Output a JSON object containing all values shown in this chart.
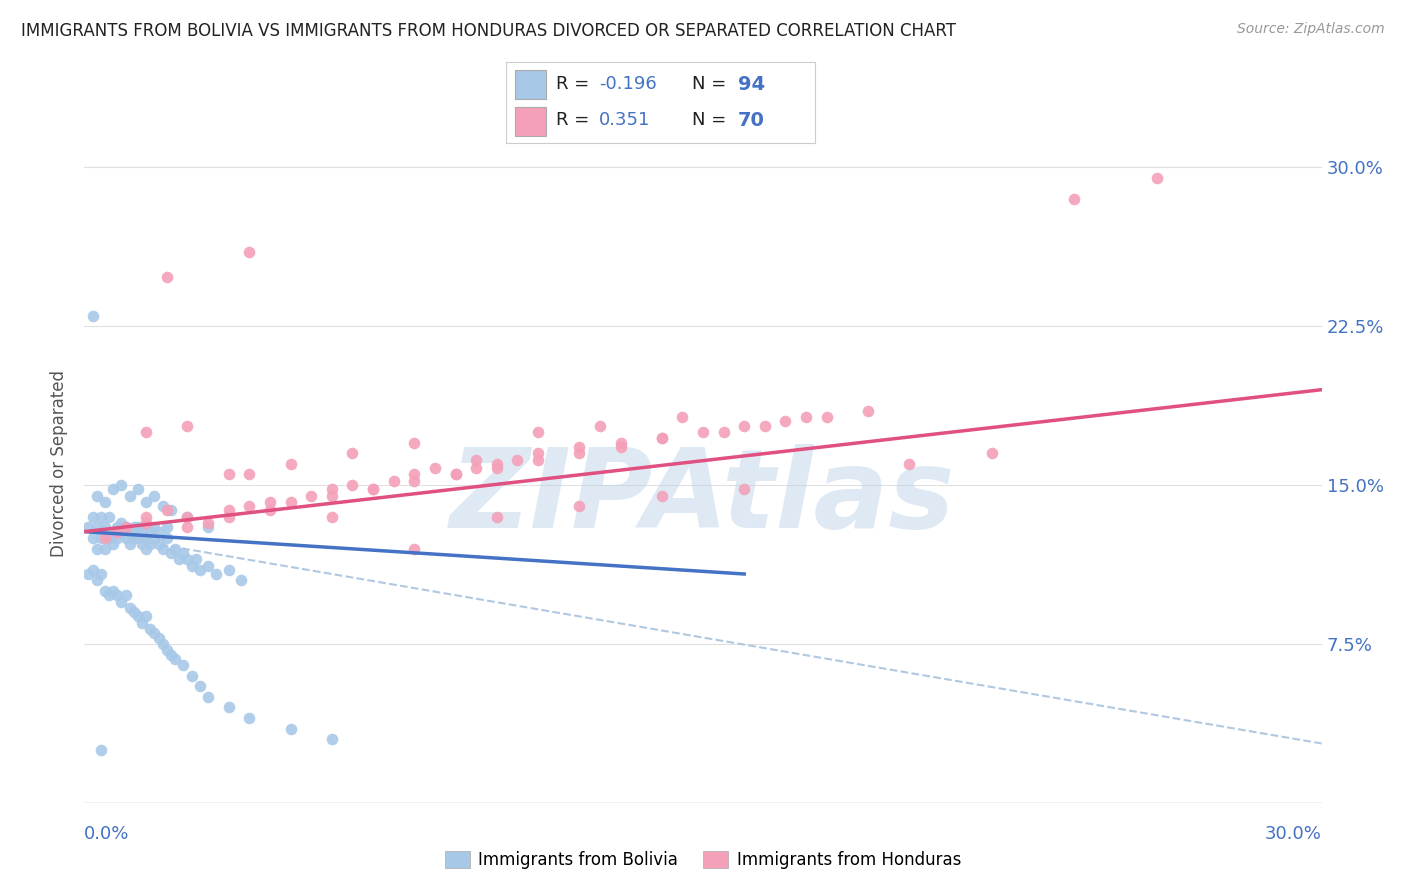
{
  "title": "IMMIGRANTS FROM BOLIVIA VS IMMIGRANTS FROM HONDURAS DIVORCED OR SEPARATED CORRELATION CHART",
  "source": "Source: ZipAtlas.com",
  "ylabel": "Divorced or Separated",
  "xlim": [
    0.0,
    0.3
  ],
  "ylim": [
    0.0,
    0.32
  ],
  "bolivia_color": "#a8c8e8",
  "honduras_color": "#f4a0b8",
  "bolivia_R": -0.196,
  "bolivia_N": 94,
  "honduras_R": 0.351,
  "honduras_N": 70,
  "legend_label_bolivia": "Immigrants from Bolivia",
  "legend_label_honduras": "Immigrants from Honduras",
  "watermark": "ZIPAtlas",
  "background_color": "#ffffff",
  "grid_color": "#e0e0e0",
  "title_color": "#222222",
  "axis_label_color": "#4472c4",
  "bolivia_line_color": "#4472c4",
  "honduras_line_color": "#e05080",
  "dashed_line_color": "#b0c8e0",
  "bolivia_line": [
    0.0,
    0.128,
    0.16,
    0.108
  ],
  "honduras_line": [
    0.0,
    0.128,
    0.3,
    0.195
  ],
  "dashed_line": [
    0.0,
    0.128,
    0.3,
    0.028
  ],
  "bolivia_scatter_x": [
    0.001,
    0.002,
    0.002,
    0.003,
    0.003,
    0.004,
    0.004,
    0.005,
    0.005,
    0.006,
    0.006,
    0.007,
    0.007,
    0.008,
    0.008,
    0.009,
    0.009,
    0.01,
    0.01,
    0.011,
    0.011,
    0.012,
    0.012,
    0.013,
    0.013,
    0.014,
    0.014,
    0.015,
    0.015,
    0.016,
    0.016,
    0.017,
    0.017,
    0.018,
    0.018,
    0.019,
    0.02,
    0.02,
    0.021,
    0.022,
    0.023,
    0.024,
    0.025,
    0.026,
    0.027,
    0.028,
    0.03,
    0.032,
    0.035,
    0.038,
    0.001,
    0.002,
    0.003,
    0.004,
    0.005,
    0.006,
    0.007,
    0.008,
    0.009,
    0.01,
    0.011,
    0.012,
    0.013,
    0.014,
    0.015,
    0.016,
    0.017,
    0.018,
    0.019,
    0.02,
    0.021,
    0.022,
    0.024,
    0.026,
    0.028,
    0.03,
    0.035,
    0.04,
    0.05,
    0.06,
    0.003,
    0.005,
    0.007,
    0.009,
    0.011,
    0.013,
    0.015,
    0.017,
    0.019,
    0.021,
    0.025,
    0.03,
    0.002,
    0.004
  ],
  "bolivia_scatter_y": [
    0.13,
    0.125,
    0.135,
    0.12,
    0.13,
    0.125,
    0.135,
    0.12,
    0.13,
    0.125,
    0.135,
    0.128,
    0.122,
    0.13,
    0.125,
    0.128,
    0.132,
    0.125,
    0.13,
    0.128,
    0.122,
    0.125,
    0.13,
    0.125,
    0.13,
    0.122,
    0.128,
    0.12,
    0.125,
    0.128,
    0.122,
    0.125,
    0.13,
    0.122,
    0.128,
    0.12,
    0.125,
    0.13,
    0.118,
    0.12,
    0.115,
    0.118,
    0.115,
    0.112,
    0.115,
    0.11,
    0.112,
    0.108,
    0.11,
    0.105,
    0.108,
    0.11,
    0.105,
    0.108,
    0.1,
    0.098,
    0.1,
    0.098,
    0.095,
    0.098,
    0.092,
    0.09,
    0.088,
    0.085,
    0.088,
    0.082,
    0.08,
    0.078,
    0.075,
    0.072,
    0.07,
    0.068,
    0.065,
    0.06,
    0.055,
    0.05,
    0.045,
    0.04,
    0.035,
    0.03,
    0.145,
    0.142,
    0.148,
    0.15,
    0.145,
    0.148,
    0.142,
    0.145,
    0.14,
    0.138,
    0.135,
    0.13,
    0.23,
    0.025
  ],
  "honduras_scatter_x": [
    0.005,
    0.01,
    0.015,
    0.02,
    0.025,
    0.03,
    0.035,
    0.04,
    0.045,
    0.05,
    0.055,
    0.06,
    0.065,
    0.07,
    0.075,
    0.08,
    0.085,
    0.09,
    0.095,
    0.1,
    0.105,
    0.11,
    0.12,
    0.13,
    0.14,
    0.15,
    0.16,
    0.17,
    0.18,
    0.19,
    0.008,
    0.015,
    0.025,
    0.035,
    0.045,
    0.06,
    0.07,
    0.08,
    0.09,
    0.1,
    0.11,
    0.12,
    0.13,
    0.14,
    0.155,
    0.165,
    0.175,
    0.015,
    0.025,
    0.035,
    0.05,
    0.065,
    0.08,
    0.095,
    0.11,
    0.125,
    0.145,
    0.04,
    0.06,
    0.08,
    0.1,
    0.12,
    0.14,
    0.16,
    0.2,
    0.22,
    0.24,
    0.26,
    0.02,
    0.04
  ],
  "honduras_scatter_y": [
    0.125,
    0.13,
    0.135,
    0.138,
    0.13,
    0.132,
    0.135,
    0.14,
    0.138,
    0.142,
    0.145,
    0.148,
    0.15,
    0.148,
    0.152,
    0.155,
    0.158,
    0.155,
    0.158,
    0.16,
    0.162,
    0.165,
    0.168,
    0.17,
    0.172,
    0.175,
    0.178,
    0.18,
    0.182,
    0.185,
    0.128,
    0.132,
    0.135,
    0.138,
    0.142,
    0.145,
    0.148,
    0.152,
    0.155,
    0.158,
    0.162,
    0.165,
    0.168,
    0.172,
    0.175,
    0.178,
    0.182,
    0.175,
    0.178,
    0.155,
    0.16,
    0.165,
    0.17,
    0.162,
    0.175,
    0.178,
    0.182,
    0.155,
    0.135,
    0.12,
    0.135,
    0.14,
    0.145,
    0.148,
    0.16,
    0.165,
    0.285,
    0.295,
    0.248,
    0.26
  ]
}
